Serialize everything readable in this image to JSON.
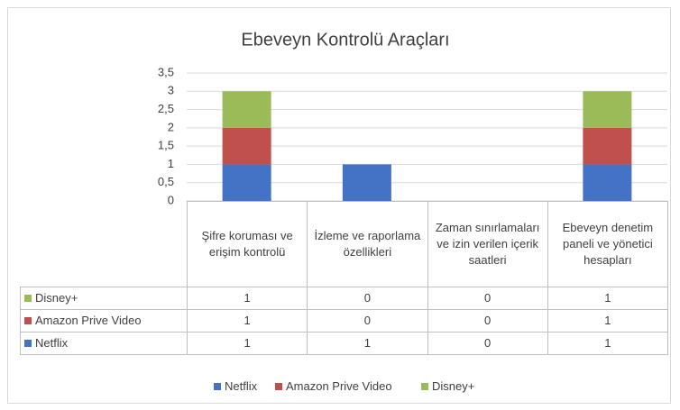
{
  "chart_data": {
    "type": "bar",
    "stacked": true,
    "title": "Ebeveyn Kontrolü Araçları",
    "categories": [
      "Şifre koruması ve erişim kontrolü",
      "İzleme ve raporlama özellikleri",
      "Zaman sınırlamaları ve izin verilen içerik saatleri",
      "Ebeveyn denetim paneli ve yönetici hesapları"
    ],
    "series": [
      {
        "name": "Netflix",
        "color": "#4472c4",
        "values": [
          1,
          1,
          0,
          1
        ]
      },
      {
        "name": "Amazon Prive Video",
        "color": "#c0504d",
        "values": [
          1,
          0,
          0,
          1
        ]
      },
      {
        "name": "Disney+",
        "color": "#9bbb59",
        "values": [
          1,
          0,
          0,
          1
        ]
      }
    ],
    "ylim": [
      0,
      3.5
    ],
    "yticks": [
      0,
      {
        "value": 0.5,
        "label": "0,5"
      },
      1,
      {
        "value": 1.5,
        "label": "1,5"
      },
      2,
      {
        "value": 2.5,
        "label": "2,5"
      },
      3,
      {
        "value": 3.5,
        "label": "3,5"
      }
    ],
    "grid": true,
    "legend": "bottom",
    "data_table": true
  }
}
